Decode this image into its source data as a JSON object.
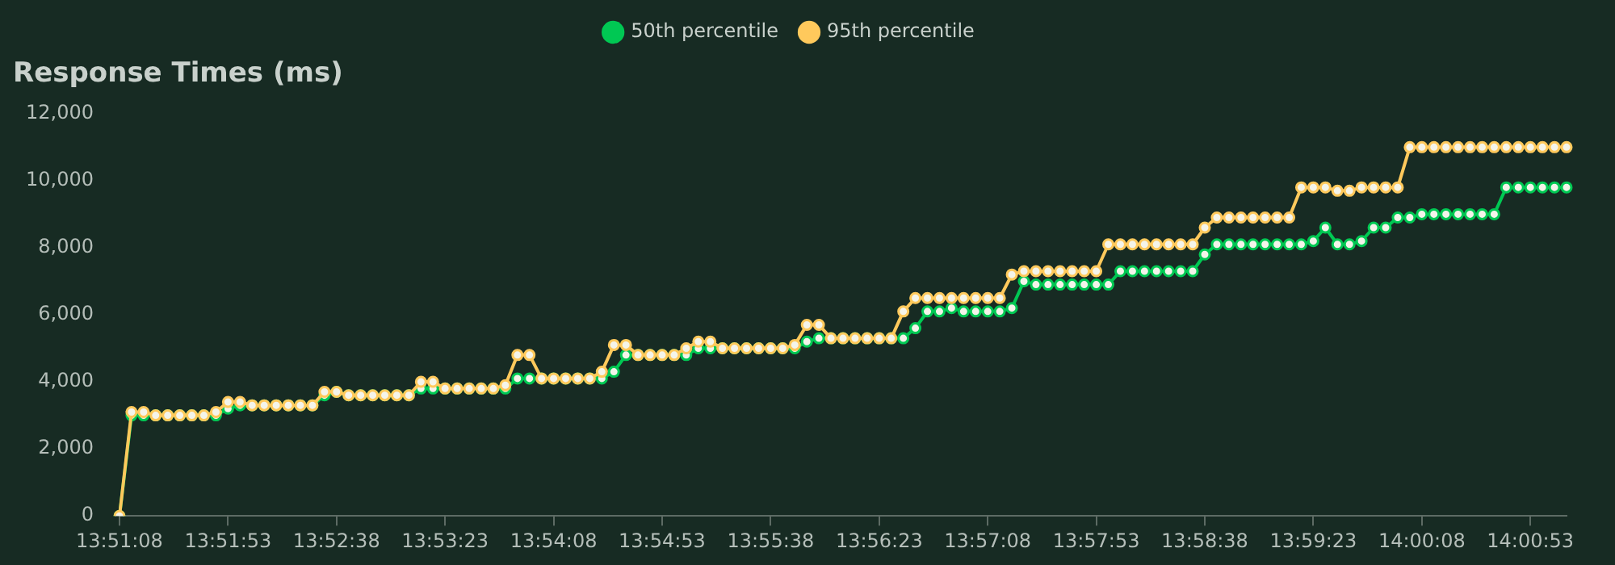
{
  "chart_data": {
    "type": "line",
    "title": "Response Times (ms)",
    "categories": [
      "13:51:08",
      null,
      null,
      null,
      null,
      null,
      null,
      null,
      null,
      "13:51:53",
      null,
      null,
      null,
      null,
      null,
      null,
      null,
      null,
      "13:52:38",
      null,
      null,
      null,
      null,
      null,
      null,
      null,
      null,
      "13:53:23",
      null,
      null,
      null,
      null,
      null,
      null,
      null,
      null,
      "13:54:08",
      null,
      null,
      null,
      null,
      null,
      null,
      null,
      null,
      "13:54:53",
      null,
      null,
      null,
      null,
      null,
      null,
      null,
      null,
      "13:55:38",
      null,
      null,
      null,
      null,
      null,
      null,
      null,
      null,
      "13:56:23",
      null,
      null,
      null,
      null,
      null,
      null,
      null,
      null,
      "13:57:08",
      null,
      null,
      null,
      null,
      null,
      null,
      null,
      null,
      "13:57:53",
      null,
      null,
      null,
      null,
      null,
      null,
      null,
      null,
      "13:58:38",
      null,
      null,
      null,
      null,
      null,
      null,
      null,
      null,
      "13:59:23",
      null,
      null,
      null,
      null,
      null,
      null,
      null,
      null,
      "14:00:08",
      null,
      null,
      null,
      null,
      null,
      null,
      null,
      null,
      "14:00:53",
      null,
      null,
      null
    ],
    "series": [
      {
        "name": "50th percentile",
        "color": "#00c853",
        "values": [
          0,
          3000,
          3000,
          3000,
          3000,
          3000,
          3000,
          3000,
          3000,
          3200,
          3300,
          3300,
          3300,
          3300,
          3300,
          3300,
          3300,
          3600,
          3700,
          3600,
          3600,
          3600,
          3600,
          3600,
          3600,
          3800,
          3800,
          3800,
          3800,
          3800,
          3800,
          3800,
          3800,
          4100,
          4100,
          4100,
          4100,
          4100,
          4100,
          4100,
          4100,
          4300,
          4800,
          4800,
          4800,
          4800,
          4800,
          4800,
          5000,
          5000,
          5000,
          5000,
          5000,
          5000,
          5000,
          5000,
          5000,
          5200,
          5300,
          5300,
          5300,
          5300,
          5300,
          5300,
          5300,
          5300,
          5600,
          6100,
          6100,
          6200,
          6100,
          6100,
          6100,
          6100,
          6200,
          7000,
          6900,
          6900,
          6900,
          6900,
          6900,
          6900,
          6900,
          7300,
          7300,
          7300,
          7300,
          7300,
          7300,
          7300,
          7800,
          8100,
          8100,
          8100,
          8100,
          8100,
          8100,
          8100,
          8100,
          8200,
          8600,
          8100,
          8100,
          8200,
          8600,
          8600,
          8900,
          8900,
          9000,
          9000,
          9000,
          9000,
          9000,
          9000,
          9000,
          9800,
          9800,
          9800,
          9800,
          9800,
          9800
        ]
      },
      {
        "name": "95th percentile",
        "color": "#ffc95c",
        "values": [
          0,
          3100,
          3100,
          3000,
          3000,
          3000,
          3000,
          3000,
          3100,
          3400,
          3400,
          3300,
          3300,
          3300,
          3300,
          3300,
          3300,
          3700,
          3700,
          3600,
          3600,
          3600,
          3600,
          3600,
          3600,
          4000,
          4000,
          3800,
          3800,
          3800,
          3800,
          3800,
          3900,
          4800,
          4800,
          4100,
          4100,
          4100,
          4100,
          4100,
          4300,
          5100,
          5100,
          4800,
          4800,
          4800,
          4800,
          5000,
          5200,
          5200,
          5000,
          5000,
          5000,
          5000,
          5000,
          5000,
          5100,
          5700,
          5700,
          5300,
          5300,
          5300,
          5300,
          5300,
          5300,
          6100,
          6500,
          6500,
          6500,
          6500,
          6500,
          6500,
          6500,
          6500,
          7200,
          7300,
          7300,
          7300,
          7300,
          7300,
          7300,
          7300,
          8100,
          8100,
          8100,
          8100,
          8100,
          8100,
          8100,
          8100,
          8600,
          8900,
          8900,
          8900,
          8900,
          8900,
          8900,
          8900,
          9800,
          9800,
          9800,
          9700,
          9700,
          9800,
          9800,
          9800,
          9800,
          11000,
          11000,
          11000,
          11000,
          11000,
          11000,
          11000,
          11000,
          11000,
          11000,
          11000,
          11000,
          11000,
          11000
        ]
      }
    ],
    "ylim": [
      0,
      12000
    ],
    "yticks": [
      0,
      {
        "value": 2000,
        "label": "2,000"
      },
      {
        "value": 4000,
        "label": "4,000"
      },
      {
        "value": 6000,
        "label": "6,000"
      },
      {
        "value": 8000,
        "label": "8,000"
      },
      {
        "value": 10000,
        "label": "10,000"
      },
      {
        "value": 12000,
        "label": "12,000"
      }
    ],
    "grid": false,
    "legend": "top",
    "marker": "circle",
    "line_style": "solid"
  }
}
